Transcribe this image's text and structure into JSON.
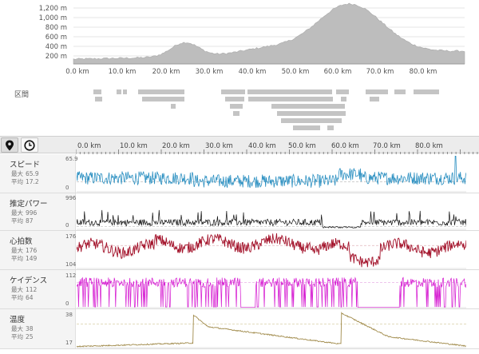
{
  "elevation": {
    "y_ticks": [
      "1,200 m",
      "1,000 m",
      "800 m",
      "600 m",
      "400 m",
      "200 m"
    ],
    "x_ticks": [
      "0.0 km",
      "10.0 km",
      "20.0 km",
      "30.0 km",
      "40.0 km",
      "50.0 km",
      "60.0 km",
      "70.0 km",
      "80.0 km"
    ],
    "fill_color": "#bdbdbd"
  },
  "segments": {
    "label": "区間",
    "bar_color": "#c4c4c4"
  },
  "toolbar": {
    "distance_icon": "map-pin-icon",
    "time_icon": "clock-icon",
    "x_ticks": [
      "0.0 km",
      "10.0 km",
      "20.0 km",
      "30.0 km",
      "40.0 km",
      "50.0 km",
      "60.0 km",
      "70.0 km",
      "80.0 km"
    ]
  },
  "metrics": [
    {
      "key": "speed",
      "name": "スピード",
      "max_label": "最大",
      "max": "65.9",
      "avg_label": "平均",
      "avg": "17.2",
      "axis_max": "65.9",
      "axis_min": "0",
      "color": "#2a8fc1"
    },
    {
      "key": "power",
      "name": "推定パワー",
      "max_label": "最大",
      "max": "996",
      "avg_label": "平均",
      "avg": "87",
      "axis_max": "996",
      "axis_min": "0",
      "color": "#111111"
    },
    {
      "key": "hr",
      "name": "心拍数",
      "max_label": "最大",
      "max": "176",
      "avg_label": "平均",
      "avg": "149",
      "axis_max": "176",
      "axis_min": "104",
      "color": "#a3122a"
    },
    {
      "key": "cadence",
      "name": "ケイデンス",
      "max_label": "最大",
      "max": "112",
      "avg_label": "平均",
      "avg": "64",
      "axis_max": "112",
      "axis_min": "0",
      "color": "#d61fd2"
    },
    {
      "key": "temp",
      "name": "温度",
      "max_label": "最大",
      "max": "38",
      "avg_label": "平均",
      "avg": "25",
      "axis_max": "38",
      "axis_min": "17",
      "color": "#a08a4a"
    }
  ]
}
